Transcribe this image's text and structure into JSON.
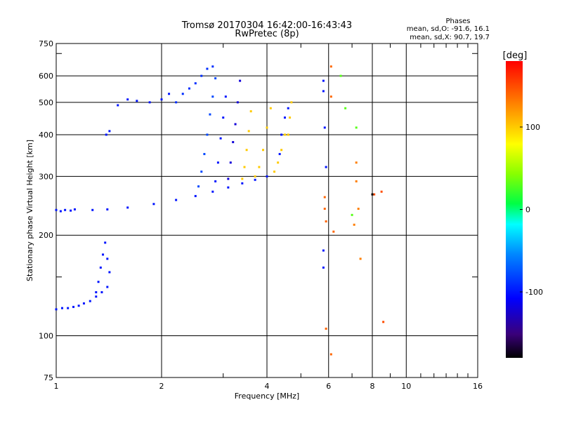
{
  "chart_data": {
    "type": "scatter",
    "title": "Tromsø 20170304 16:42:00-16:43:43",
    "subtitle": "RwPretec (8p)",
    "xlabel": "Frequency [MHz]",
    "ylabel": "Stationary phase Virtual Height [km]",
    "x_scale": "log",
    "y_scale": "log",
    "xlim": [
      1,
      16
    ],
    "ylim": [
      75,
      750
    ],
    "x_ticks": [
      "1",
      "2",
      "4",
      "6",
      "8",
      "10",
      "16"
    ],
    "x_tick_values": [
      1,
      2,
      4,
      6,
      8,
      10,
      16
    ],
    "y_ticks": [
      "75",
      "100",
      "200",
      "300",
      "400",
      "500",
      "600",
      "750"
    ],
    "y_tick_values": [
      75,
      100,
      200,
      300,
      400,
      500,
      600,
      750
    ],
    "x_minor_ticks": [
      3,
      5,
      7,
      9,
      11,
      12,
      13,
      14,
      15
    ],
    "y_minor_ticks": [
      150,
      700
    ],
    "grid": true,
    "stats": {
      "heading": "Phases",
      "line_o": "mean, sd,O: -91.6, 16.1",
      "line_x": "mean, sd,X:  90.7, 19.7"
    },
    "colorbar": {
      "label": "[deg]",
      "range": [
        -180,
        180
      ],
      "ticks": [
        "100",
        "0",
        "-100"
      ],
      "tick_values": [
        100,
        0,
        -100
      ]
    },
    "series": [
      {
        "x": [
          1.0,
          1.03,
          1.06,
          1.1,
          1.13
        ],
        "y": [
          238,
          236,
          238,
          237,
          239
        ],
        "phase": -100
      },
      {
        "x": [
          1.27,
          1.4,
          1.6,
          1.9,
          2.2,
          2.5,
          2.8,
          3.1,
          3.4,
          3.7,
          4.0
        ],
        "y": [
          238,
          239,
          242,
          248,
          255,
          262,
          270,
          278,
          286,
          293,
          300
        ],
        "phase": -100
      },
      {
        "x": [
          1.0,
          1.04,
          1.08,
          1.12,
          1.16,
          1.2,
          1.25,
          1.3,
          1.35,
          1.4
        ],
        "y": [
          120,
          121,
          121,
          122,
          123,
          125,
          127,
          131,
          135,
          140
        ],
        "phase": -100
      },
      {
        "x": [
          1.3,
          1.32,
          1.34,
          1.36,
          1.38,
          1.4,
          1.42
        ],
        "y": [
          135,
          145,
          160,
          175,
          190,
          170,
          155
        ],
        "phase": -100
      },
      {
        "x": [
          1.39,
          1.42,
          1.5,
          1.6,
          1.7,
          1.85,
          2.0,
          2.1
        ],
        "y": [
          400,
          410,
          490,
          510,
          505,
          500,
          510,
          530
        ],
        "phase": -100
      },
      {
        "x": [
          2.2,
          2.3,
          2.4,
          2.5,
          2.6,
          2.7,
          2.8
        ],
        "y": [
          500,
          530,
          550,
          570,
          600,
          630,
          640
        ],
        "phase": -90
      },
      {
        "x": [
          2.55,
          2.6,
          2.65,
          2.7,
          2.75,
          2.8,
          2.85
        ],
        "y": [
          280,
          310,
          350,
          400,
          460,
          520,
          590
        ],
        "phase": -80
      },
      {
        "x": [
          2.85,
          2.9,
          2.95,
          3.0,
          3.05
        ],
        "y": [
          290,
          330,
          390,
          450,
          520
        ],
        "phase": -100
      },
      {
        "x": [
          3.1,
          3.15,
          3.2,
          3.25,
          3.3,
          3.35
        ],
        "y": [
          295,
          330,
          380,
          430,
          500,
          580
        ],
        "phase": -120
      },
      {
        "x": [
          3.4,
          3.45,
          3.5,
          3.55,
          3.6
        ],
        "y": [
          295,
          320,
          360,
          410,
          470
        ],
        "phase": 100
      },
      {
        "x": [
          3.7,
          3.8,
          3.9,
          4.0,
          4.1
        ],
        "y": [
          300,
          320,
          360,
          420,
          480
        ],
        "phase": 100
      },
      {
        "x": [
          4.2,
          4.3,
          4.4,
          4.5
        ],
        "y": [
          310,
          330,
          360,
          400
        ],
        "phase": 100
      },
      {
        "x": [
          4.35,
          4.4,
          4.5,
          4.6
        ],
        "y": [
          350,
          400,
          450,
          480
        ],
        "phase": -100
      },
      {
        "x": [
          4.6,
          4.65,
          4.7
        ],
        "y": [
          400,
          450,
          500
        ],
        "phase": 100
      },
      {
        "x": [
          5.8,
          5.8,
          5.85,
          5.9,
          5.8,
          5.8
        ],
        "y": [
          580,
          540,
          420,
          320,
          180,
          160
        ],
        "phase": -100
      },
      {
        "x": [
          5.85,
          5.85,
          5.9,
          5.9
        ],
        "y": [
          260,
          240,
          220,
          105
        ],
        "phase": 140
      },
      {
        "x": [
          6.1,
          6.1,
          6.2,
          6.1
        ],
        "y": [
          640,
          520,
          205,
          88
        ],
        "phase": 140
      },
      {
        "x": [
          6.5,
          6.7,
          7.0,
          7.2
        ],
        "y": [
          600,
          480,
          230,
          420
        ],
        "phase": 30
      },
      {
        "x": [
          7.1,
          7.2,
          7.2,
          7.3,
          7.4
        ],
        "y": [
          215,
          330,
          290,
          240,
          170
        ],
        "phase": 130
      },
      {
        "x": [
          8.1,
          8.5,
          8.6
        ],
        "y": [
          265,
          270,
          110
        ],
        "phase": 150
      },
      {
        "x": [
          8.0
        ],
        "y": [
          265
        ],
        "phase": -180
      }
    ]
  }
}
